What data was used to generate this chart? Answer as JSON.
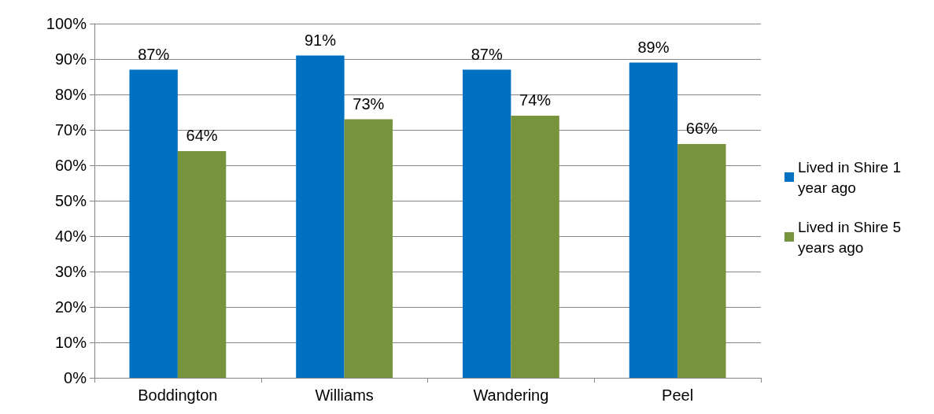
{
  "chart_data": {
    "type": "bar",
    "categories": [
      "Boddington",
      "Williams",
      "Wandering",
      "Peel"
    ],
    "series": [
      {
        "name": "Lived in Shire 1 year ago",
        "color": "#0070c0",
        "values": [
          87,
          91,
          87,
          89
        ],
        "value_labels": [
          "87%",
          "91%",
          "87%",
          "89%"
        ]
      },
      {
        "name": "Lived in Shire 5 years ago",
        "color": "#77933c",
        "values": [
          64,
          73,
          74,
          66
        ],
        "value_labels": [
          "64%",
          "73%",
          "74%",
          "66%"
        ]
      }
    ],
    "ylim": [
      0,
      100
    ],
    "yticks": [
      {
        "value": 0,
        "label": "0%"
      },
      {
        "value": 10,
        "label": "10%"
      },
      {
        "value": 20,
        "label": "20%"
      },
      {
        "value": 30,
        "label": "30%"
      },
      {
        "value": 40,
        "label": "40%"
      },
      {
        "value": 50,
        "label": "50%"
      },
      {
        "value": 60,
        "label": "60%"
      },
      {
        "value": 70,
        "label": "70%"
      },
      {
        "value": 80,
        "label": "80%"
      },
      {
        "value": 90,
        "label": "90%"
      },
      {
        "value": 100,
        "label": "100%"
      }
    ],
    "grid": "y",
    "legend": "right"
  }
}
